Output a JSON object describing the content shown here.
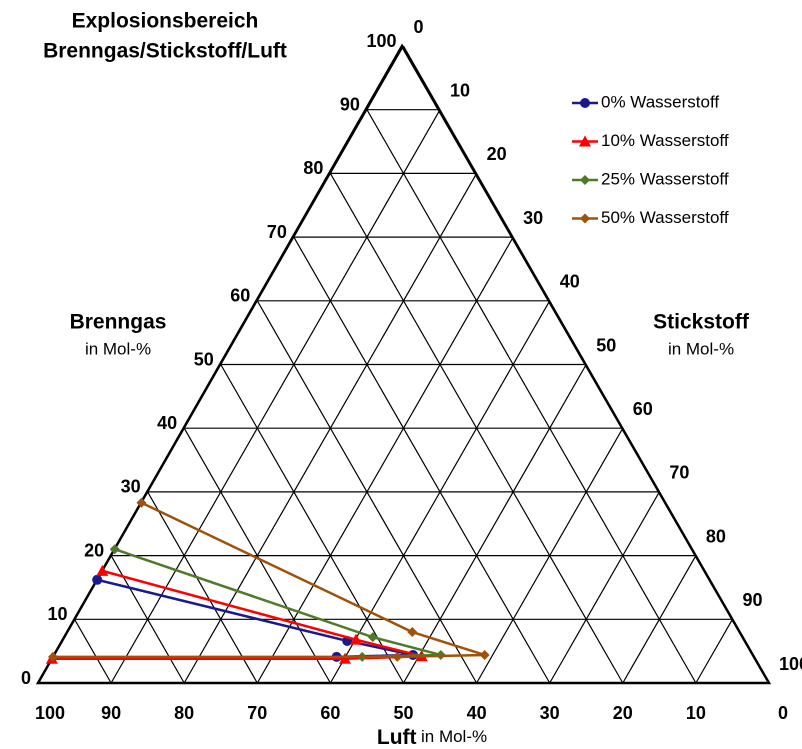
{
  "chart_data": {
    "type": "ternary",
    "title": [
      "Explosionsbereich",
      "Brenngas/Stickstoff/Luft"
    ],
    "axes": [
      {
        "name": "Brenngas",
        "unit": "in Mol-%",
        "ticks": [
          0,
          10,
          20,
          30,
          40,
          50,
          60,
          70,
          80,
          90,
          100
        ]
      },
      {
        "name": "Stickstoff",
        "unit": "in Mol-%",
        "ticks": [
          0,
          10,
          20,
          30,
          40,
          50,
          60,
          70,
          80,
          90,
          100
        ]
      },
      {
        "name": "Luft",
        "unit": "in Mol-%",
        "ticks": [
          0,
          10,
          20,
          30,
          40,
          50,
          60,
          70,
          80,
          90,
          100
        ]
      }
    ],
    "grid": true,
    "legend": "top-right",
    "series": [
      {
        "name": "0% Wasserstoff",
        "color": "#1a1a8c",
        "marker": "circle",
        "brenngas": [
          16.2,
          6.6,
          4.4,
          4.1
        ],
        "stickstoff": [
          0,
          39,
          49.1,
          38.8
        ]
      },
      {
        "name": "10% Wasserstoff",
        "color": "#ff0000",
        "marker": "triangle",
        "brenngas": [
          17.6,
          6.8,
          4.2,
          3.8,
          3.8
        ],
        "stickstoff": [
          0,
          40.1,
          50.4,
          40.1,
          0
        ]
      },
      {
        "name": "25% Wasserstoff",
        "color": "#4f7a28",
        "marker": "diamond",
        "brenngas": [
          21,
          7.2,
          4.4,
          4.1
        ],
        "stickstoff": [
          0,
          42.2,
          52.9,
          42.3
        ]
      },
      {
        "name": "50% Wasserstoff",
        "color": "#a0520a",
        "marker": "diamond",
        "brenngas": [
          28.3,
          8,
          4.4,
          4.1,
          4.1
        ],
        "stickstoff": [
          0,
          47.2,
          58.9,
          47.1,
          0
        ]
      }
    ]
  }
}
